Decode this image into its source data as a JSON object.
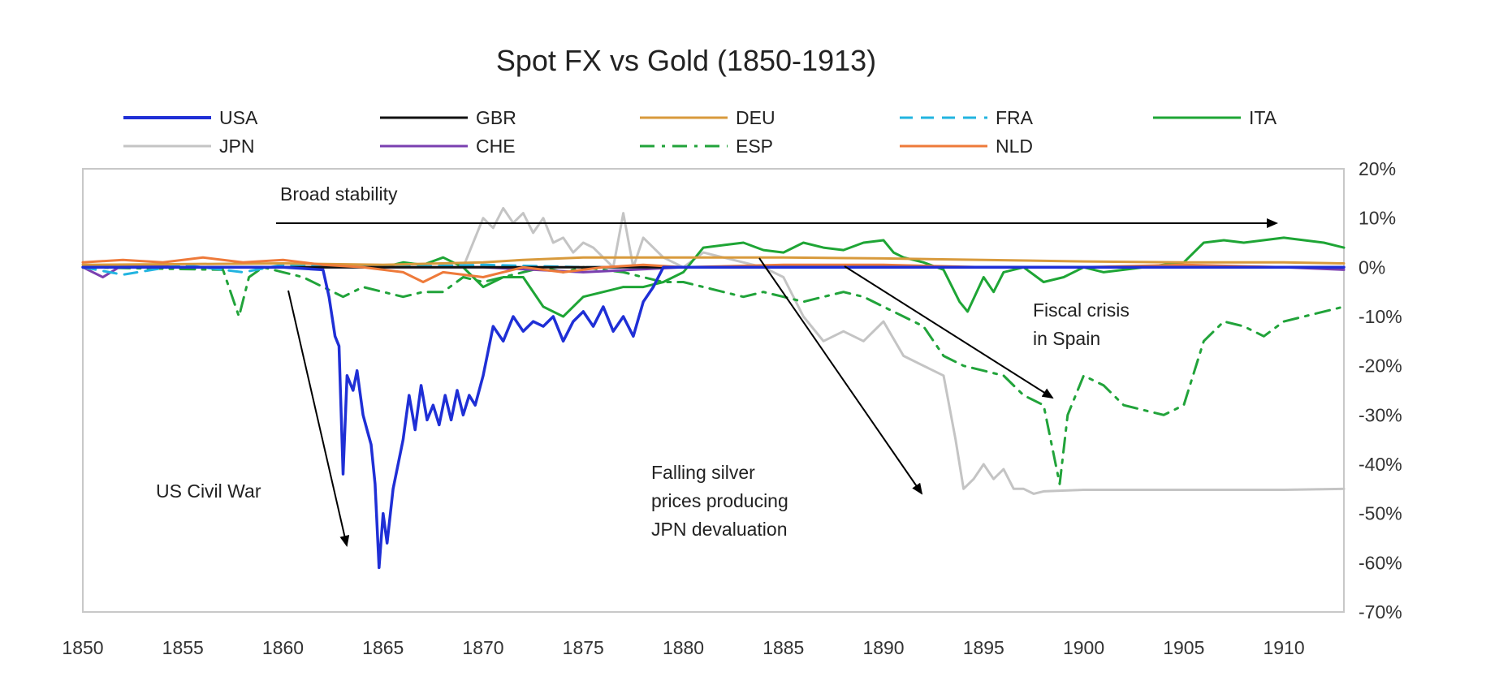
{
  "chart_data": {
    "type": "line",
    "title": "Spot FX vs Gold (1850-1913)",
    "xlabel": "",
    "ylabel": "",
    "xlim": [
      1850,
      1913
    ],
    "ylim": [
      -0.7,
      0.2
    ],
    "y_axis_side": "right",
    "grid": false,
    "legend_position": "top",
    "x_ticks": [
      1850,
      1855,
      1860,
      1865,
      1870,
      1875,
      1880,
      1885,
      1890,
      1895,
      1900,
      1905,
      1910
    ],
    "x_tick_labels": [
      "1850",
      "1855",
      "1860",
      "1865",
      "1870",
      "1875",
      "1880",
      "1885",
      "1890",
      "1895",
      "1900",
      "1905",
      "1910"
    ],
    "y_ticks": [
      0.2,
      0.1,
      0.0,
      -0.1,
      -0.2,
      -0.3,
      -0.4,
      -0.5,
      -0.6,
      -0.7
    ],
    "y_tick_labels": [
      "20%",
      "10%",
      "0%",
      "-10%",
      "-20%",
      "-30%",
      "-40%",
      "-50%",
      "-60%",
      "-70%"
    ],
    "series": [
      {
        "name": "USA",
        "color": "#1f2fd6",
        "dash": "solid",
        "x": [
          1850,
          1855,
          1860,
          1862,
          1862.3,
          1862.6,
          1862.8,
          1863,
          1863.2,
          1863.5,
          1863.7,
          1864,
          1864.2,
          1864.4,
          1864.6,
          1864.8,
          1865,
          1865.2,
          1865.5,
          1866,
          1866.3,
          1866.6,
          1866.9,
          1867.2,
          1867.5,
          1867.8,
          1868.1,
          1868.4,
          1868.7,
          1869,
          1869.3,
          1869.6,
          1870,
          1870.5,
          1871,
          1871.5,
          1872,
          1872.5,
          1873,
          1873.5,
          1874,
          1874.5,
          1875,
          1875.5,
          1876,
          1876.5,
          1877,
          1877.5,
          1878,
          1878.5,
          1879,
          1880,
          1885,
          1890,
          1895,
          1900,
          1905,
          1913
        ],
        "y": [
          0.0,
          0.0,
          0.0,
          -0.005,
          -0.06,
          -0.14,
          -0.16,
          -0.42,
          -0.22,
          -0.25,
          -0.21,
          -0.3,
          -0.33,
          -0.36,
          -0.44,
          -0.61,
          -0.5,
          -0.56,
          -0.45,
          -0.35,
          -0.26,
          -0.33,
          -0.24,
          -0.31,
          -0.28,
          -0.32,
          -0.26,
          -0.31,
          -0.25,
          -0.3,
          -0.26,
          -0.28,
          -0.22,
          -0.12,
          -0.15,
          -0.1,
          -0.13,
          -0.11,
          -0.12,
          -0.1,
          -0.15,
          -0.11,
          -0.09,
          -0.12,
          -0.08,
          -0.13,
          -0.1,
          -0.14,
          -0.07,
          -0.04,
          0.0,
          0.0,
          0.0,
          0.0,
          0.0,
          0.0,
          0.0,
          0.0
        ]
      },
      {
        "name": "GBR",
        "color": "#111111",
        "dash": "solid",
        "x": [
          1850,
          1913
        ],
        "y": [
          0.0,
          0.0
        ]
      },
      {
        "name": "DEU",
        "color": "#d89a3c",
        "dash": "solid",
        "x": [
          1850,
          1860,
          1865,
          1870,
          1872,
          1875,
          1880,
          1885,
          1890,
          1895,
          1900,
          1905,
          1910,
          1913
        ],
        "y": [
          0.005,
          0.008,
          0.005,
          0.01,
          0.015,
          0.02,
          0.02,
          0.02,
          0.018,
          0.015,
          0.012,
          0.01,
          0.01,
          0.008
        ]
      },
      {
        "name": "FRA",
        "color": "#22b4e0",
        "dash": "dash",
        "x": [
          1850,
          1852,
          1855,
          1858,
          1860,
          1865,
          1870,
          1875,
          1880,
          1885,
          1890,
          1895,
          1900,
          1905,
          1910,
          1913
        ],
        "y": [
          0.0,
          -0.015,
          0.005,
          -0.01,
          0.005,
          0.0,
          0.005,
          0.0,
          0.0,
          0.0,
          0.0,
          0.0,
          0.0,
          0.0,
          0.0,
          0.0
        ]
      },
      {
        "name": "ITA",
        "color": "#1ea535",
        "dash": "solid",
        "x": [
          1850,
          1855,
          1860,
          1865,
          1866,
          1867,
          1868,
          1869,
          1870,
          1871,
          1872,
          1873,
          1874,
          1875,
          1876,
          1877,
          1878,
          1879,
          1880,
          1881,
          1882,
          1883,
          1884,
          1885,
          1886,
          1887,
          1888,
          1889,
          1890,
          1890.5,
          1891,
          1892,
          1893,
          1893.8,
          1894.2,
          1895,
          1895.5,
          1896,
          1897,
          1898,
          1899,
          1900,
          1901,
          1902,
          1903,
          1904,
          1905,
          1906,
          1907,
          1908,
          1910,
          1912,
          1913
        ],
        "y": [
          0.0,
          0.0,
          0.0,
          0.0,
          0.01,
          0.005,
          0.02,
          0.0,
          -0.04,
          -0.02,
          -0.02,
          -0.08,
          -0.1,
          -0.06,
          -0.05,
          -0.04,
          -0.04,
          -0.03,
          -0.01,
          0.04,
          0.045,
          0.05,
          0.035,
          0.03,
          0.05,
          0.04,
          0.035,
          0.05,
          0.055,
          0.03,
          0.02,
          0.01,
          -0.005,
          -0.07,
          -0.09,
          -0.02,
          -0.05,
          -0.01,
          0.0,
          -0.03,
          -0.02,
          0.0,
          -0.01,
          -0.005,
          0.0,
          0.005,
          0.01,
          0.05,
          0.055,
          0.05,
          0.06,
          0.05,
          0.04
        ]
      },
      {
        "name": "JPN",
        "color": "#c4c4c4",
        "dash": "solid",
        "x": [
          1850,
          1868,
          1869,
          1870,
          1870.5,
          1871,
          1871.5,
          1872,
          1872.5,
          1873,
          1873.5,
          1874,
          1874.5,
          1875,
          1875.5,
          1876,
          1876.5,
          1877,
          1877.5,
          1878,
          1879,
          1880,
          1881,
          1882,
          1883,
          1884,
          1885,
          1886,
          1887,
          1888,
          1889,
          1890,
          1891,
          1892,
          1893,
          1893.6,
          1894,
          1894.5,
          1895,
          1895.5,
          1896,
          1896.5,
          1897,
          1897.5,
          1898,
          1900,
          1905,
          1910,
          1913
        ],
        "y": [
          0.0,
          0.0,
          0.0,
          0.1,
          0.08,
          0.12,
          0.09,
          0.11,
          0.07,
          0.1,
          0.05,
          0.06,
          0.03,
          0.05,
          0.04,
          0.02,
          0.0,
          0.11,
          0.0,
          0.06,
          0.02,
          0.0,
          0.03,
          0.02,
          0.01,
          0.0,
          -0.02,
          -0.1,
          -0.15,
          -0.13,
          -0.15,
          -0.11,
          -0.18,
          -0.2,
          -0.22,
          -0.35,
          -0.45,
          -0.43,
          -0.4,
          -0.43,
          -0.41,
          -0.45,
          -0.45,
          -0.46,
          -0.455,
          -0.452,
          -0.452,
          -0.452,
          -0.45
        ]
      },
      {
        "name": "CHE",
        "color": "#7a3fb0",
        "dash": "solid",
        "x": [
          1850,
          1851,
          1852,
          1855,
          1860,
          1865,
          1870,
          1875,
          1880,
          1885,
          1890,
          1895,
          1900,
          1905,
          1910,
          1913
        ],
        "y": [
          0.0,
          -0.02,
          0.005,
          0.0,
          0.0,
          0.0,
          0.0,
          -0.01,
          0.0,
          0.0,
          0.0,
          0.0,
          0.0,
          0.0,
          0.0,
          -0.005
        ]
      },
      {
        "name": "ESP",
        "color": "#21a33a",
        "dash": "dashdot",
        "x": [
          1850,
          1857,
          1857.8,
          1858.3,
          1859,
          1860,
          1861,
          1862,
          1863,
          1864,
          1865,
          1866,
          1867,
          1868,
          1869,
          1870,
          1871,
          1872,
          1873,
          1874,
          1875,
          1876,
          1877,
          1878,
          1879,
          1880,
          1881,
          1882,
          1883,
          1884,
          1885,
          1886,
          1887,
          1888,
          1889,
          1890,
          1891,
          1892,
          1893,
          1894,
          1895,
          1896,
          1897,
          1898,
          1898.4,
          1898.8,
          1899.2,
          1900,
          1901,
          1902,
          1903,
          1904,
          1905,
          1906,
          1907,
          1908,
          1909,
          1910,
          1911,
          1912,
          1913
        ],
        "y": [
          0.0,
          -0.005,
          -0.1,
          -0.02,
          0.0,
          -0.01,
          -0.02,
          -0.04,
          -0.06,
          -0.04,
          -0.05,
          -0.06,
          -0.05,
          -0.05,
          -0.02,
          -0.03,
          -0.02,
          -0.01,
          0.0,
          -0.01,
          0.0,
          -0.005,
          -0.01,
          -0.02,
          -0.03,
          -0.03,
          -0.04,
          -0.05,
          -0.06,
          -0.05,
          -0.06,
          -0.07,
          -0.06,
          -0.05,
          -0.06,
          -0.08,
          -0.1,
          -0.12,
          -0.18,
          -0.2,
          -0.21,
          -0.22,
          -0.26,
          -0.28,
          -0.36,
          -0.44,
          -0.3,
          -0.22,
          -0.24,
          -0.28,
          -0.29,
          -0.3,
          -0.28,
          -0.15,
          -0.11,
          -0.12,
          -0.14,
          -0.11,
          -0.1,
          -0.09,
          -0.08
        ]
      },
      {
        "name": "NLD",
        "color": "#ee7a3a",
        "dash": "solid",
        "x": [
          1850,
          1852,
          1854,
          1856,
          1858,
          1860,
          1862,
          1864,
          1866,
          1867,
          1868,
          1870,
          1872,
          1874,
          1876,
          1878,
          1880,
          1885,
          1890,
          1895,
          1900,
          1905,
          1910,
          1913
        ],
        "y": [
          0.01,
          0.015,
          0.01,
          0.02,
          0.01,
          0.015,
          0.005,
          0.0,
          -0.01,
          -0.03,
          -0.01,
          -0.02,
          0.0,
          -0.01,
          0.0,
          0.005,
          0.0,
          0.005,
          0.005,
          0.0,
          0.0,
          0.005,
          0.0,
          0.0
        ]
      }
    ],
    "annotations": [
      {
        "text": "Broad stability",
        "lines": [
          "Broad stability"
        ]
      },
      {
        "text": "US Civil War",
        "lines": [
          "US Civil War"
        ]
      },
      {
        "text": "Falling silver prices producing JPN devaluation",
        "lines": [
          "Falling silver",
          "prices producing",
          "JPN devaluation"
        ]
      },
      {
        "text": "Fiscal crisis in Spain",
        "lines": [
          "Fiscal crisis",
          "in Spain"
        ]
      }
    ]
  }
}
